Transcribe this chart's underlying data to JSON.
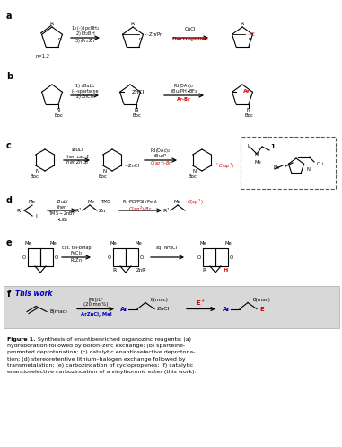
{
  "bg_color": "#ffffff",
  "highlight_bg": "#dddddd",
  "red": "#cc0000",
  "blue": "#0000bb",
  "black": "#000000",
  "gray": "#888888"
}
